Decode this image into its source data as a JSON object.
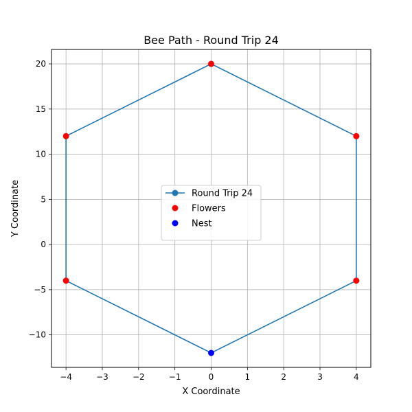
{
  "chart_data": {
    "type": "line",
    "title": "Bee Path - Round Trip 24",
    "xlabel": "X Coordinate",
    "ylabel": "Y Coordinate",
    "xlim": [
      -4.4,
      4.4
    ],
    "ylim": [
      -13.6,
      21.6
    ],
    "xticks": [
      -4,
      -3,
      -2,
      -1,
      0,
      1,
      2,
      3,
      4
    ],
    "xtick_labels": [
      "−4",
      "−3",
      "−2",
      "−1",
      "0",
      "1",
      "2",
      "3",
      "4"
    ],
    "yticks": [
      -10,
      -5,
      0,
      5,
      10,
      15,
      20
    ],
    "ytick_labels": [
      "−10",
      "−5",
      "0",
      "5",
      "10",
      "15",
      "20"
    ],
    "grid": true,
    "legend_position": "center",
    "series": [
      {
        "name": "Round Trip 24",
        "kind": "line",
        "color": "#1f77b4",
        "points": [
          [
            0,
            -12
          ],
          [
            -4,
            -4
          ],
          [
            -4,
            12
          ],
          [
            0,
            20
          ],
          [
            4,
            12
          ],
          [
            4,
            -4
          ],
          [
            0,
            -12
          ]
        ]
      },
      {
        "name": "Flowers",
        "kind": "scatter",
        "color": "#ff0000",
        "points": [
          [
            -4,
            -4
          ],
          [
            -4,
            12
          ],
          [
            0,
            20
          ],
          [
            4,
            12
          ],
          [
            4,
            -4
          ]
        ]
      },
      {
        "name": "Nest",
        "kind": "scatter",
        "color": "#0000ff",
        "points": [
          [
            0,
            -12
          ]
        ]
      }
    ]
  }
}
